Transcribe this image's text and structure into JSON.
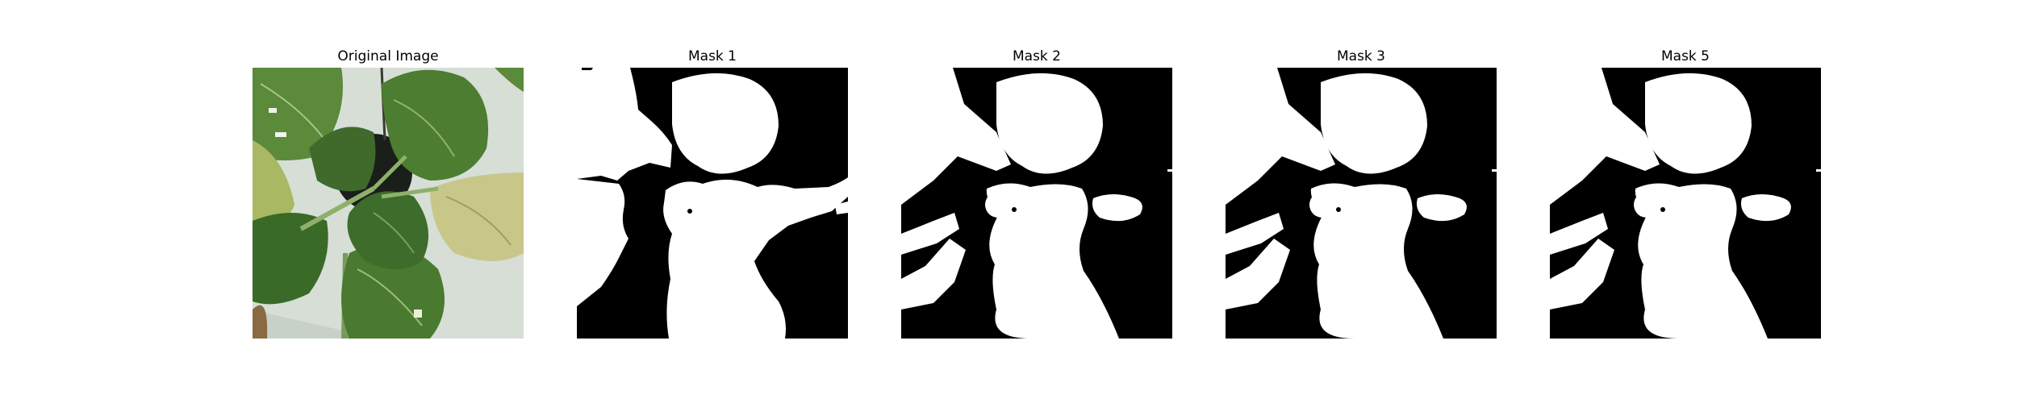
{
  "figure": {
    "panels": [
      {
        "title": "Original Image",
        "kind": "photo"
      },
      {
        "title": "Mask 1",
        "kind": "mask"
      },
      {
        "title": "Mask 2",
        "kind": "mask"
      },
      {
        "title": "Mask 3",
        "kind": "mask"
      },
      {
        "title": "Mask 5",
        "kind": "mask"
      }
    ]
  },
  "colors": {
    "background": "#ffffff",
    "mask_foreground": "#ffffff",
    "mask_background": "#000000",
    "leaf_dark": "#3f6a2c",
    "leaf_light": "#6f9a45",
    "leaf_yellow": "#c9c68a",
    "pot_background": "#d6ded6"
  }
}
